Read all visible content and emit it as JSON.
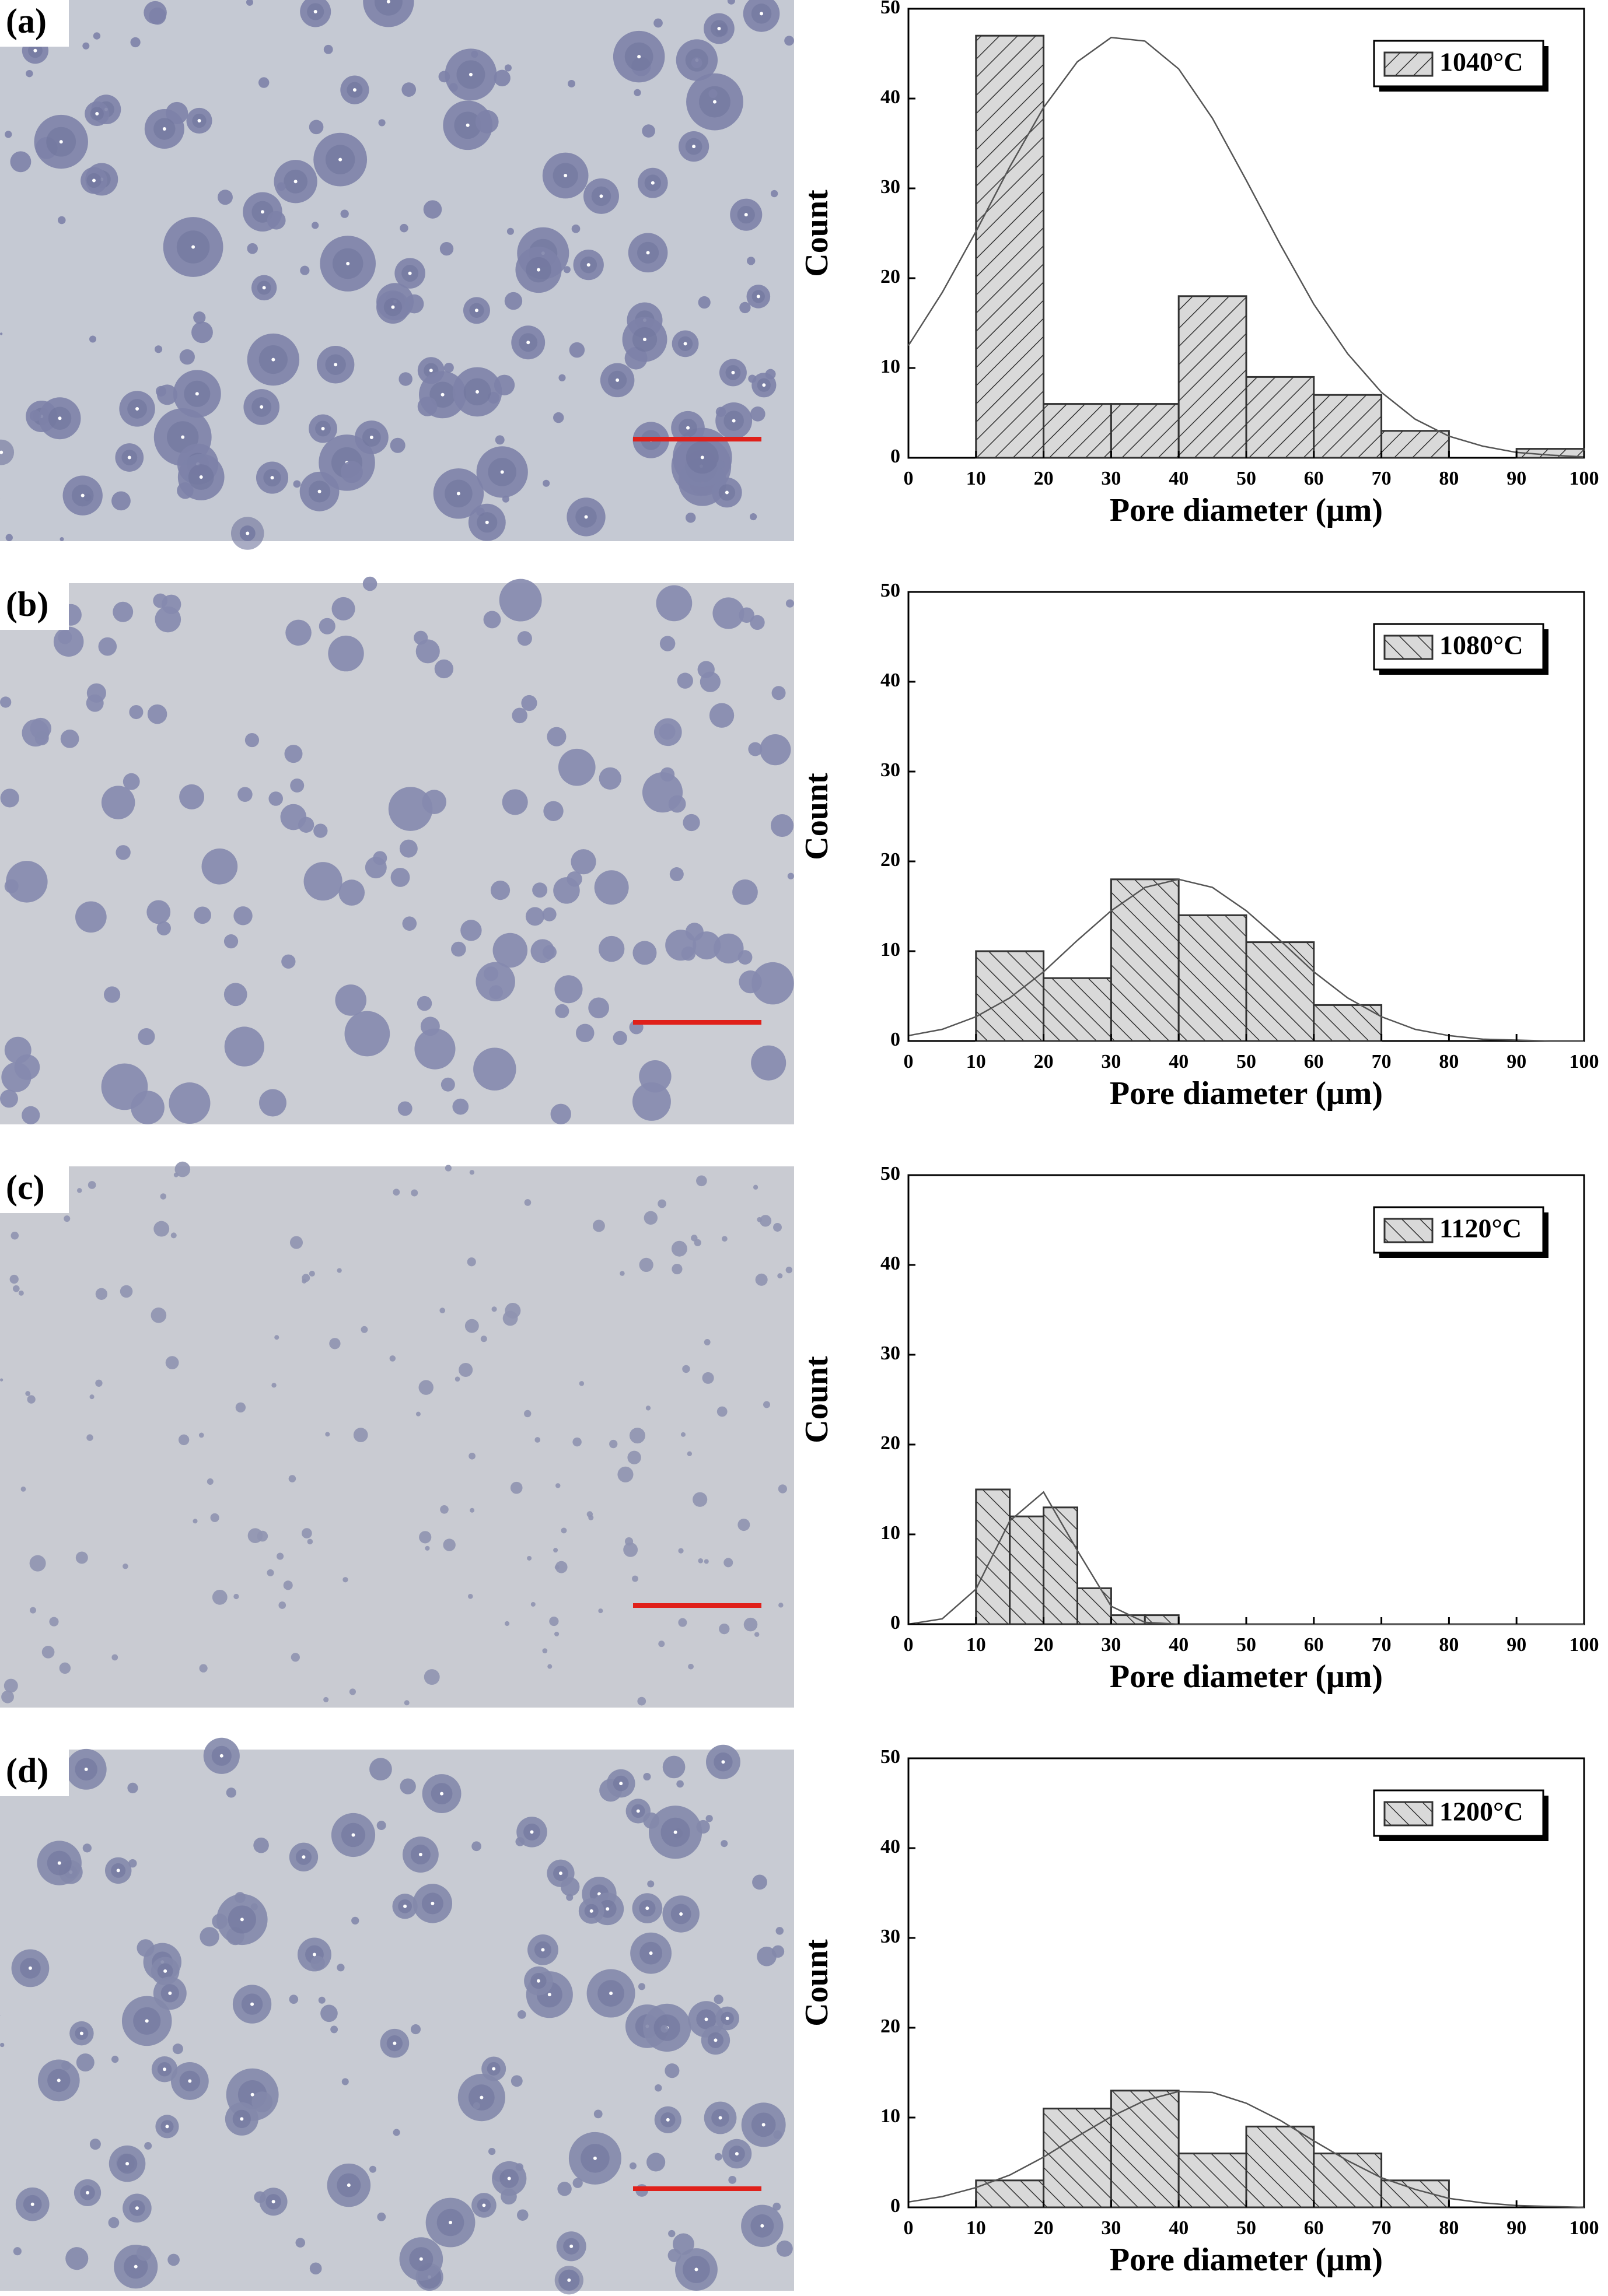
{
  "chart_data": [
    {
      "type": "histogram",
      "panel_label": "(a)",
      "xlabel": "Pore diameter (μm)",
      "ylabel": "Count",
      "legend": "upper right",
      "hatch": "/",
      "bins": [
        10,
        20,
        30,
        40,
        50,
        60,
        70,
        80,
        90,
        100
      ],
      "series": [
        {
          "name": "1040°C",
          "color": "#d9d9d9",
          "values": [
            47,
            6,
            6,
            18,
            9,
            7,
            3,
            0,
            1
          ]
        }
      ],
      "fit": {
        "x": [
          0,
          5,
          10,
          15,
          20,
          25,
          30,
          35,
          40,
          45,
          50,
          55,
          60,
          65,
          70,
          75,
          80,
          85,
          90,
          95,
          100
        ],
        "values": [
          12.5,
          18.4,
          25.2,
          32.4,
          39.0,
          44.1,
          46.8,
          46.4,
          43.3,
          37.8,
          30.9,
          23.8,
          17.1,
          11.6,
          7.3,
          4.3,
          2.4,
          1.3,
          0.6,
          0.3,
          0.1
        ]
      },
      "xlim": [
        0,
        100
      ],
      "ylim": [
        0,
        50
      ],
      "xticks": [
        0,
        10,
        20,
        30,
        40,
        50,
        60,
        70,
        80,
        90,
        100
      ],
      "yticks": [
        0,
        10,
        20,
        30,
        40,
        50
      ]
    },
    {
      "type": "histogram",
      "panel_label": "(b)",
      "xlabel": "Pore diameter (μm)",
      "ylabel": "Count",
      "legend": "upper right",
      "hatch": "\\",
      "bins": [
        10,
        20,
        30,
        40,
        50,
        60,
        70
      ],
      "series": [
        {
          "name": "1080°C",
          "color": "#d9d9d9",
          "values": [
            10,
            7,
            18,
            14,
            11,
            4
          ]
        }
      ],
      "fit": {
        "x": [
          0,
          5,
          10,
          15,
          20,
          25,
          30,
          35,
          40,
          45,
          50,
          55,
          60,
          65,
          70,
          75,
          80,
          85,
          90,
          95,
          100
        ],
        "values": [
          0.6,
          1.3,
          2.7,
          4.8,
          7.7,
          11.2,
          14.5,
          17.1,
          18.0,
          17.1,
          14.5,
          11.2,
          7.7,
          4.8,
          2.7,
          1.3,
          0.6,
          0.2,
          0.1,
          0.0,
          0.0
        ]
      },
      "xlim": [
        0,
        100
      ],
      "ylim": [
        0,
        50
      ],
      "xticks": [
        0,
        10,
        20,
        30,
        40,
        50,
        60,
        70,
        80,
        90,
        100
      ],
      "yticks": [
        0,
        10,
        20,
        30,
        40,
        50
      ]
    },
    {
      "type": "histogram",
      "panel_label": "(c)",
      "xlabel": "Pore diameter (μm)",
      "ylabel": "Count",
      "legend": "upper right",
      "hatch": "\\",
      "bins": [
        10,
        15,
        20,
        25,
        30,
        35,
        40
      ],
      "series": [
        {
          "name": "1120°C",
          "color": "#d9d9d9",
          "values": [
            15,
            12,
            13,
            4,
            1,
            1
          ]
        }
      ],
      "fit": {
        "x": [
          0,
          5,
          10,
          15,
          20,
          25,
          30,
          35,
          40,
          45,
          50,
          55,
          60,
          65,
          70,
          75,
          80,
          85,
          90,
          95,
          100
        ],
        "values": [
          0.0,
          0.6,
          3.9,
          11.5,
          14.7,
          8.2,
          2.0,
          0.2,
          0.0,
          0.0,
          0.0,
          0.0,
          0.0,
          0.0,
          0.0,
          0.0,
          0.0,
          0.0,
          0.0,
          0.0,
          0.0
        ]
      },
      "xlim": [
        0,
        100
      ],
      "ylim": [
        0,
        50
      ],
      "xticks": [
        0,
        10,
        20,
        30,
        40,
        50,
        60,
        70,
        80,
        90,
        100
      ],
      "yticks": [
        0,
        10,
        20,
        30,
        40,
        50
      ]
    },
    {
      "type": "histogram",
      "panel_label": "(d)",
      "xlabel": "Pore diameter (μm)",
      "ylabel": "Count",
      "legend": "upper right",
      "hatch": "\\",
      "bins": [
        10,
        20,
        30,
        40,
        50,
        60,
        70,
        80
      ],
      "series": [
        {
          "name": "1200°C",
          "color": "#d9d9d9",
          "values": [
            3,
            11,
            13,
            6,
            9,
            6,
            3
          ]
        }
      ],
      "fit": {
        "x": [
          0,
          5,
          10,
          15,
          20,
          25,
          30,
          35,
          40,
          45,
          50,
          55,
          60,
          65,
          70,
          75,
          80,
          85,
          90,
          95,
          100
        ],
        "values": [
          0.6,
          1.2,
          2.2,
          3.6,
          5.6,
          7.9,
          10.1,
          11.9,
          12.9,
          12.8,
          11.6,
          9.7,
          7.4,
          5.2,
          3.3,
          2.0,
          1.0,
          0.5,
          0.2,
          0.1,
          0.0
        ]
      },
      "xlim": [
        0,
        100
      ],
      "ylim": [
        0,
        50
      ],
      "xticks": [
        0,
        10,
        20,
        30,
        40,
        50,
        60,
        70,
        80,
        90,
        100
      ],
      "yticks": [
        0,
        10,
        20,
        30,
        40,
        50
      ]
    }
  ]
}
